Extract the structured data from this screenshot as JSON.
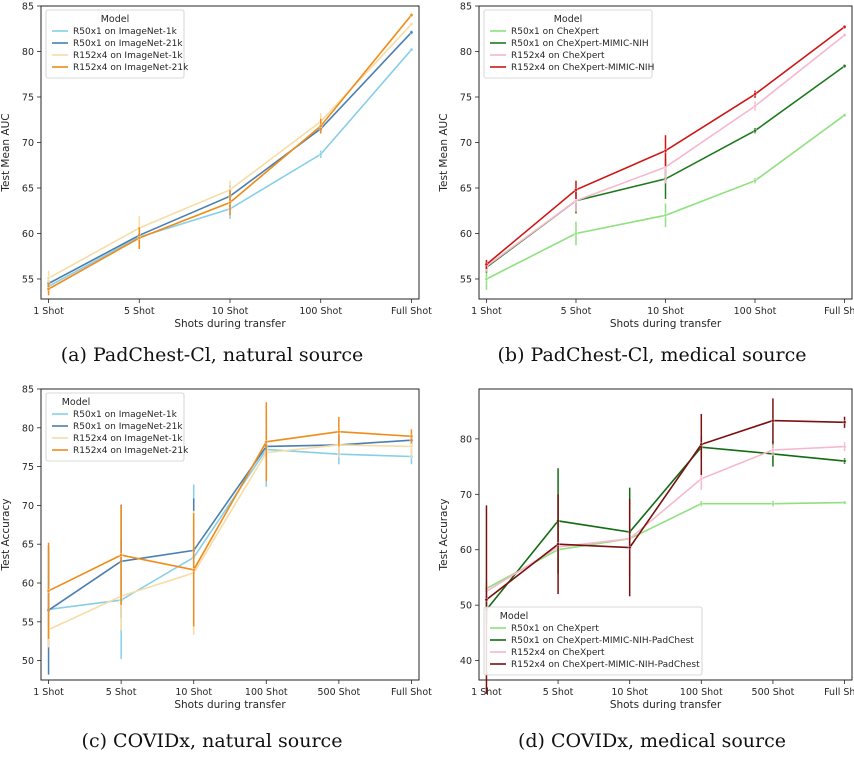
{
  "chart_data": [
    {
      "type": "line",
      "caption": "(a) PadChest-Cl, natural source",
      "xlabel": "Shots during transfer",
      "ylabel": "Test Mean AUC",
      "ylim": [
        52.8,
        85
      ],
      "yticks": [
        55,
        60,
        65,
        70,
        75,
        80,
        85
      ],
      "categories": [
        "1 Shot",
        "5 Shot",
        "10 Shot",
        "100 Shot",
        "Full Shot"
      ],
      "legend_title": "Model",
      "legend_position": "top-left",
      "grid": false,
      "series": [
        {
          "name": "R50x1 on ImageNet-1k",
          "color": "#87cfe8",
          "values": [
            54.2,
            59.6,
            62.7,
            68.7,
            80.2
          ],
          "errors": [
            0.6,
            1.3,
            1.1,
            0.4,
            0.2
          ]
        },
        {
          "name": "R50x1 on ImageNet-21k",
          "color": "#4a7fb0",
          "values": [
            54.5,
            59.8,
            64.1,
            71.5,
            82.1
          ],
          "errors": [
            0.5,
            1.0,
            1.2,
            0.5,
            0.2
          ]
        },
        {
          "name": "R152x4 on ImageNet-1k",
          "color": "#f7dca6",
          "values": [
            55.1,
            60.6,
            64.8,
            72.3,
            83.0
          ],
          "errors": [
            0.8,
            1.3,
            1.0,
            0.9,
            0.2
          ]
        },
        {
          "name": "R152x4 on ImageNet-21k",
          "color": "#ef8c1a",
          "values": [
            53.9,
            59.5,
            63.4,
            71.8,
            84.0
          ],
          "errors": [
            0.7,
            1.2,
            1.4,
            0.8,
            0.2
          ]
        }
      ]
    },
    {
      "type": "line",
      "caption": "(b) PadChest-Cl, medical source",
      "xlabel": "Shots during transfer",
      "ylabel": "Test Mean AUC",
      "ylim": [
        52.8,
        85
      ],
      "yticks": [
        55,
        60,
        65,
        70,
        75,
        80,
        85
      ],
      "categories": [
        "1 Shot",
        "5 Shot",
        "10 Shot",
        "100 Shot",
        "Full Shot"
      ],
      "legend_title": "Model",
      "legend_position": "top-left",
      "grid": false,
      "series": [
        {
          "name": "R50x1 on CheXpert",
          "color": "#90e080",
          "values": [
            55.0,
            60.0,
            62.0,
            65.8,
            73.0
          ],
          "errors": [
            1.2,
            1.3,
            1.3,
            0.3,
            0.2
          ]
        },
        {
          "name": "R50x1 on CheXpert-MIMIC-NIH",
          "color": "#1f7a1f",
          "values": [
            56.3,
            63.6,
            66.0,
            71.3,
            78.4
          ],
          "errors": [
            0.6,
            1.4,
            2.2,
            0.3,
            0.2
          ]
        },
        {
          "name": "R152x4 on CheXpert",
          "color": "#f5b8cc",
          "values": [
            56.4,
            63.6,
            67.3,
            74.0,
            81.8
          ],
          "errors": [
            0.6,
            1.2,
            1.8,
            0.5,
            0.2
          ]
        },
        {
          "name": "R152x4 on CheXpert-MIMIC-NIH",
          "color": "#d01515",
          "values": [
            56.6,
            64.8,
            69.1,
            75.3,
            82.7
          ],
          "errors": [
            0.5,
            1.0,
            1.7,
            0.4,
            0.2
          ]
        }
      ]
    },
    {
      "type": "line",
      "caption": "(c) COVIDx, natural source",
      "xlabel": "Shots during transfer",
      "ylabel": "Test Accuracy",
      "ylim": [
        47.5,
        85
      ],
      "yticks": [
        50,
        55,
        60,
        65,
        70,
        75,
        80,
        85
      ],
      "categories": [
        "1 Shot",
        "5 Shot",
        "10 Shot",
        "100 Shot",
        "500 Shot",
        "Full Shot"
      ],
      "legend_title": "Model",
      "legend_position": "top-left",
      "grid": false,
      "series": [
        {
          "name": "R50x1 on ImageNet-1k",
          "color": "#87cfe8",
          "values": [
            56.6,
            57.8,
            63.3,
            77.2,
            76.6,
            76.3
          ],
          "errors": [
            2.8,
            7.6,
            9.4,
            4.8,
            1.3,
            1.0
          ]
        },
        {
          "name": "R50x1 on ImageNet-21k",
          "color": "#4a7fb0",
          "values": [
            56.5,
            62.8,
            64.2,
            77.6,
            77.8,
            78.4
          ],
          "errors": [
            8.3,
            7.3,
            6.7,
            2.2,
            1.3,
            0.8
          ]
        },
        {
          "name": "R152x4 on ImageNet-1k",
          "color": "#f7dca6",
          "values": [
            54.0,
            58.3,
            61.3,
            76.8,
            77.8,
            77.6
          ],
          "errors": [
            2.3,
            4.4,
            8.0,
            1.8,
            1.6,
            1.4
          ]
        },
        {
          "name": "R152x4 on ImageNet-21k",
          "color": "#ef8c1a",
          "values": [
            59.0,
            63.6,
            61.7,
            78.2,
            79.5,
            78.9
          ],
          "errors": [
            6.2,
            6.4,
            7.3,
            5.1,
            1.9,
            0.9
          ]
        }
      ]
    },
    {
      "type": "line",
      "caption": "(d) COVIDx, medical source",
      "xlabel": "Shots during transfer",
      "ylabel": "Test Accuracy",
      "ylim": [
        36.5,
        89
      ],
      "yticks": [
        40,
        50,
        60,
        70,
        80
      ],
      "categories": [
        "1 Shot",
        "5 Shot",
        "10 Shot",
        "100 Shot",
        "500 Shot",
        "Full Shot"
      ],
      "legend_title": "Model",
      "legend_position": "bottom-left",
      "grid": false,
      "series": [
        {
          "name": "R50x1 on CheXpert",
          "color": "#90e080",
          "values": [
            53.0,
            60.0,
            62.0,
            68.3,
            68.3,
            68.5
          ],
          "errors": [
            1.5,
            1.0,
            0.8,
            0.5,
            0.5,
            0.3
          ]
        },
        {
          "name": "R50x1 on CheXpert-MIMIC-NIH-PadChest",
          "color": "#136b13",
          "values": [
            49.2,
            65.2,
            63.2,
            78.5,
            77.3,
            76.0
          ],
          "errors": [
            2.5,
            9.5,
            8.0,
            2.0,
            2.3,
            0.5
          ]
        },
        {
          "name": "R152x4 on CheXpert",
          "color": "#f5b8cc",
          "values": [
            52.5,
            60.5,
            62.0,
            72.8,
            78.0,
            78.6
          ],
          "errors": [
            1.5,
            1.5,
            6.0,
            2.0,
            1.0,
            0.8
          ]
        },
        {
          "name": "R152x4 on CheXpert-MIMIC-NIH-PadChest",
          "color": "#7a1010",
          "values": [
            51.0,
            61.0,
            60.4,
            79.0,
            83.3,
            83.0
          ],
          "errors": [
            17.0,
            9.0,
            8.8,
            5.5,
            4.0,
            1.0
          ]
        }
      ]
    }
  ]
}
